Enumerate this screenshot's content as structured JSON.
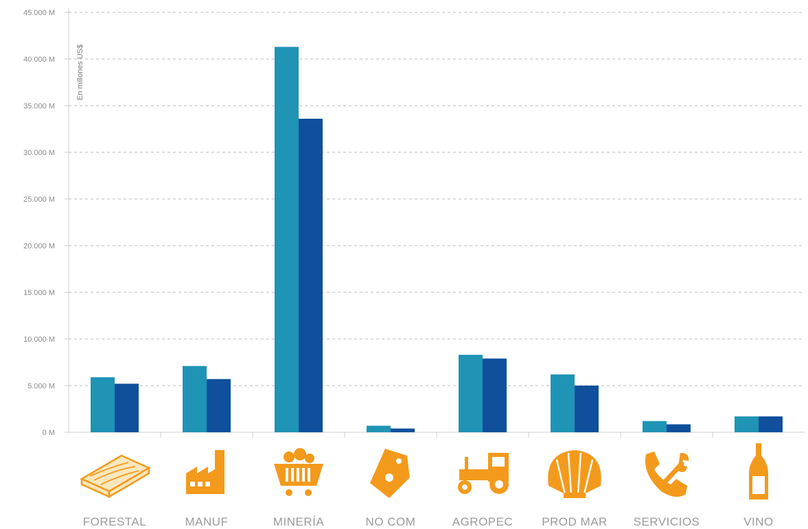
{
  "chart_data": {
    "type": "bar",
    "categories": [
      "FORESTAL",
      "MANUF",
      "MINERÍA",
      "NO COM",
      "AGROPEC",
      "PROD MAR",
      "SERVICIOS",
      "VINO"
    ],
    "series": [
      {
        "values": [
          5900,
          7100,
          41300,
          700,
          8300,
          6200,
          1200,
          1700
        ]
      },
      {
        "values": [
          5200,
          5700,
          33600,
          400,
          7900,
          5000,
          850,
          1700
        ]
      }
    ],
    "ylabel": "En millones US$",
    "ylim": [
      0,
      45000
    ],
    "yticks": [
      0,
      5000,
      10000,
      15000,
      20000,
      25000,
      30000,
      35000,
      40000,
      45000
    ],
    "ytick_labels": [
      "0 M",
      "5.000 M",
      "10.000 M",
      "15.000 M",
      "20.000 M",
      "25.000 M",
      "30.000 M",
      "35.000 M",
      "40.000 M",
      "45.000 M"
    ],
    "grid": true,
    "legend": "none",
    "colors": {
      "series_1": "#1f94b5",
      "series_2": "#0f4f9c",
      "icons": "#f39a1c",
      "grid": "#bbbbbb",
      "axis": "#cccccc"
    },
    "category_icons": [
      "wood-plank-icon",
      "factory-icon",
      "mining-cart-icon",
      "price-tag-icon",
      "tractor-icon",
      "seashell-icon",
      "phone-wrench-icon",
      "wine-bottle-icon"
    ]
  }
}
